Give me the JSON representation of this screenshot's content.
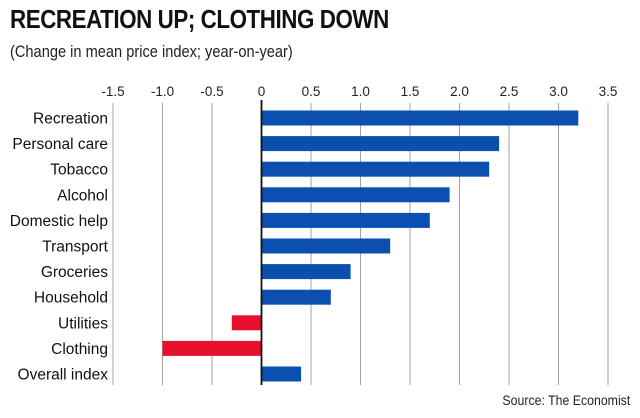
{
  "title": "RECREATION UP; CLOTHING DOWN",
  "subtitle": "(Change in mean price index; year-on-year)",
  "source": "Source: The Economist",
  "colors": {
    "positive": "#0b4fb0",
    "negative": "#e8112d",
    "grid": "#8a8a8a",
    "axis": "#111111"
  },
  "chart_data": {
    "type": "bar",
    "orientation": "horizontal",
    "categories": [
      "Recreation",
      "Personal care",
      "Tobacco",
      "Alcohol",
      "Domestic help",
      "Transport",
      "Groceries",
      "Household",
      "Utilities",
      "Clothing",
      "Overall index"
    ],
    "values": [
      3.2,
      2.4,
      2.3,
      1.9,
      1.7,
      1.3,
      0.9,
      0.7,
      -0.3,
      -1.0,
      0.4
    ],
    "xlim": [
      -1.5,
      3.5
    ],
    "xticks": [
      -1.5,
      -1.0,
      -0.5,
      0,
      0.5,
      1.0,
      1.5,
      2.0,
      2.5,
      3.0,
      3.5
    ],
    "xtick_labels": [
      "-1.5",
      "-1.0",
      "-0.5",
      "0",
      "0.5",
      "1.0",
      "1.5",
      "2.0",
      "2.5",
      "3.0",
      "3.5"
    ],
    "grid": true,
    "xlabel": "",
    "ylabel": ""
  }
}
